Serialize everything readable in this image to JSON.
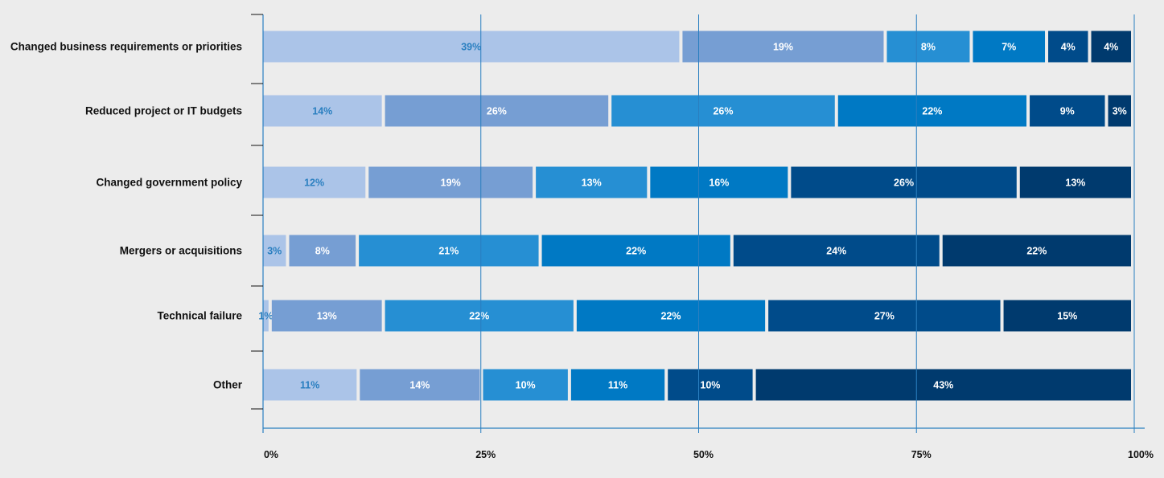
{
  "chart_data": {
    "type": "bar",
    "orientation": "horizontal",
    "stacked": true,
    "title": "",
    "xlabel": "",
    "ylabel": "",
    "xlim": [
      0,
      100
    ],
    "x_ticks": [
      {
        "value": 0,
        "label": "0%"
      },
      {
        "value": 25,
        "label": "25%"
      },
      {
        "value": 50,
        "label": "50%"
      },
      {
        "value": 75,
        "label": "75%"
      },
      {
        "value": 100,
        "label": "100%"
      }
    ],
    "grid": "vertical",
    "legend": "none",
    "categories": [
      "Changed business requirements or priorities",
      "Reduced project or IT budgets",
      "Changed government policy",
      "Mergers or acquisitions",
      "Technical failure",
      "Other"
    ],
    "series": [
      {
        "color": "#abc4e8",
        "values": [
          39,
          14,
          12,
          3,
          1,
          11
        ],
        "labels": [
          "39%",
          "14%",
          "12%",
          "3%",
          "1%",
          "11%"
        ]
      },
      {
        "color": "#769ed3",
        "values": [
          19,
          26,
          19,
          8,
          13,
          14
        ],
        "labels": [
          "19%",
          "26%",
          "19%",
          "8%",
          "13%",
          "14%"
        ]
      },
      {
        "color": "#268fd3",
        "values": [
          8,
          26,
          13,
          21,
          22,
          10
        ],
        "labels": [
          "8%",
          "26%",
          "13%",
          "21%",
          "22%",
          "10%"
        ]
      },
      {
        "color": "#0079c4",
        "values": [
          7,
          22,
          16,
          22,
          22,
          11
        ],
        "labels": [
          "7%",
          "22%",
          "16%",
          "22%",
          "22%",
          "11%"
        ]
      },
      {
        "color": "#004b8a",
        "values": [
          4,
          9,
          26,
          24,
          27,
          10
        ],
        "labels": [
          "4%",
          "9%",
          "26%",
          "24%",
          "27%",
          "10%"
        ]
      },
      {
        "color": "#003a6e",
        "values": [
          4,
          3,
          13,
          22,
          15,
          43
        ],
        "labels": [
          "4%",
          "3%",
          "13%",
          "22%",
          "15%",
          "43%"
        ]
      }
    ],
    "colors": {
      "background": "#ececec",
      "gridline": "#2a7fc0",
      "axis": "#2a7fc0",
      "label_text": "#ffffff",
      "label_text_dark": "#2a7fc0"
    }
  }
}
